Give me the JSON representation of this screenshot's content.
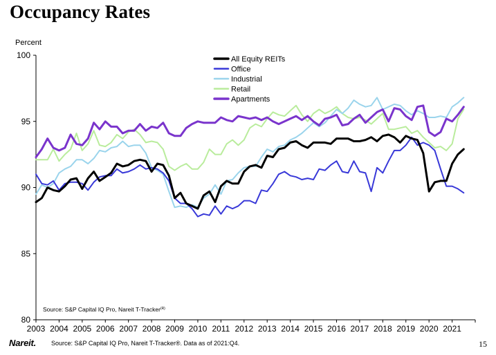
{
  "slide": {
    "title": "Occupancy Rates",
    "page_number": "15",
    "logo_text": "Nareit.",
    "footer_source": "Source: S&P Capital IQ Pro, Nareit T-Tracker®. Data as of 2021:Q4."
  },
  "chart_data": {
    "type": "line",
    "title": "",
    "ylabel": "Percent",
    "xlabel": "",
    "ylim": [
      80,
      100
    ],
    "yticks": [
      80,
      85,
      90,
      95,
      100
    ],
    "xlim": [
      2003,
      2022
    ],
    "xticks": [
      "2003",
      "2004",
      "2005",
      "2006",
      "2007",
      "2008",
      "2009",
      "2010",
      "2011",
      "2012",
      "2013",
      "2014",
      "2015",
      "2016",
      "2017",
      "2018",
      "2019",
      "2020",
      "2021"
    ],
    "grid": false,
    "legend_position": "top-center",
    "note": "Source: S&P Capital IQ Pro, Nareit T-Tracker",
    "note_superscript": "(R)",
    "x_start": 2003.0,
    "x_step": 0.25,
    "series": [
      {
        "name": "All Equity REITs",
        "color": "#000000",
        "width": 3,
        "values": [
          88.9,
          89.2,
          90.0,
          89.8,
          89.7,
          90.1,
          90.6,
          90.7,
          89.9,
          90.7,
          91.2,
          90.5,
          90.8,
          91.1,
          91.8,
          91.6,
          91.7,
          92.0,
          92.1,
          92.0,
          91.2,
          91.8,
          91.7,
          90.9,
          89.2,
          89.6,
          88.8,
          88.6,
          88.4,
          89.4,
          89.7,
          88.9,
          90.1,
          90.5,
          90.3,
          90.3,
          91.2,
          91.6,
          91.7,
          91.5,
          92.4,
          92.3,
          92.9,
          93.0,
          93.4,
          93.5,
          93.2,
          93.0,
          93.4,
          93.4,
          93.4,
          93.3,
          93.7,
          93.7,
          93.7,
          93.5,
          93.5,
          93.6,
          93.8,
          93.5,
          93.9,
          94.0,
          93.8,
          93.4,
          93.9,
          93.7,
          93.6,
          92.6,
          89.7,
          90.4,
          90.5,
          90.5,
          91.8,
          92.5,
          92.9
        ]
      },
      {
        "name": "Office",
        "color": "#3838d8",
        "width": 2,
        "values": [
          91.0,
          90.3,
          90.2,
          90.5,
          89.8,
          90.3,
          90.4,
          90.4,
          90.3,
          89.8,
          90.4,
          90.8,
          90.9,
          90.9,
          91.4,
          91.1,
          91.2,
          91.4,
          91.7,
          91.4,
          91.5,
          91.4,
          91.1,
          90.5,
          89.2,
          88.8,
          88.8,
          88.4,
          87.8,
          88.0,
          87.9,
          88.6,
          88.0,
          88.6,
          88.4,
          88.6,
          89.0,
          89.0,
          88.8,
          89.8,
          89.7,
          90.3,
          91.0,
          91.2,
          90.9,
          90.8,
          90.6,
          90.7,
          90.6,
          91.4,
          91.3,
          91.7,
          92.0,
          91.2,
          91.1,
          92.0,
          91.2,
          91.1,
          89.7,
          91.5,
          91.1,
          92.0,
          92.8,
          92.8,
          93.2,
          93.8,
          93.2,
          93.4,
          93.2,
          92.8,
          91.4,
          90.1,
          90.1,
          89.9,
          89.6
        ]
      },
      {
        "name": "Industrial",
        "color": "#9ad4ec",
        "width": 2,
        "values": [
          89.5,
          90.2,
          90.0,
          90.3,
          91.1,
          91.4,
          91.6,
          92.1,
          92.1,
          91.8,
          92.2,
          92.8,
          92.7,
          93.0,
          93.1,
          93.5,
          93.1,
          93.2,
          93.2,
          92.6,
          91.5,
          91.3,
          91.0,
          89.7,
          88.5,
          88.6,
          88.5,
          88.7,
          88.5,
          89.2,
          89.5,
          90.2,
          89.5,
          90.5,
          90.6,
          91.1,
          91.5,
          91.6,
          91.6,
          92.3,
          92.9,
          92.7,
          93.1,
          93.2,
          93.6,
          93.8,
          94.1,
          94.5,
          94.9,
          94.6,
          94.9,
          95.4,
          95.9,
          95.6,
          96.0,
          96.6,
          96.3,
          96.1,
          96.2,
          96.8,
          95.9,
          96.1,
          96.3,
          96.2,
          95.8,
          95.5,
          95.8,
          95.6,
          95.3,
          95.3,
          95.4,
          95.3,
          96.1,
          96.4,
          96.8
        ]
      },
      {
        "name": "Retail",
        "color": "#b9ec9c",
        "width": 2,
        "values": [
          92.1,
          92.1,
          92.1,
          92.9,
          92.0,
          92.5,
          92.9,
          94.1,
          92.8,
          93.3,
          94.3,
          93.2,
          93.1,
          93.4,
          94.0,
          93.7,
          94.2,
          94.4,
          94.0,
          93.4,
          93.5,
          93.4,
          92.9,
          91.6,
          91.3,
          91.6,
          91.8,
          91.4,
          91.4,
          91.9,
          92.9,
          92.5,
          92.5,
          93.3,
          93.6,
          93.2,
          93.6,
          94.5,
          94.8,
          94.6,
          95.2,
          95.7,
          95.5,
          95.4,
          95.8,
          96.2,
          95.5,
          95.0,
          95.6,
          95.9,
          95.6,
          95.8,
          96.1,
          95.6,
          95.3,
          95.2,
          95.3,
          95.1,
          94.8,
          95.2,
          95.6,
          94.4,
          94.4,
          94.5,
          94.6,
          94.1,
          94.3,
          93.8,
          93.4,
          93.0,
          93.1,
          92.8,
          93.3,
          95.2,
          95.9
        ]
      },
      {
        "name": "Apartments",
        "color": "#7a34cc",
        "width": 3,
        "values": [
          92.3,
          92.9,
          93.7,
          93.0,
          92.8,
          93.0,
          94.0,
          93.3,
          93.2,
          93.7,
          94.9,
          94.4,
          95.0,
          94.6,
          94.6,
          94.1,
          94.3,
          94.3,
          94.8,
          94.3,
          94.6,
          94.5,
          94.9,
          94.1,
          93.9,
          93.9,
          94.5,
          94.8,
          95.0,
          94.9,
          94.9,
          94.9,
          95.3,
          95.1,
          95.0,
          95.4,
          95.3,
          95.2,
          95.3,
          95.1,
          95.3,
          95.0,
          94.8,
          95.0,
          95.2,
          95.4,
          95.1,
          95.4,
          95.0,
          94.7,
          95.2,
          95.3,
          95.5,
          94.7,
          94.8,
          95.2,
          95.5,
          94.9,
          95.3,
          95.7,
          95.9,
          95.0,
          96.0,
          95.9,
          95.4,
          95.1,
          96.1,
          96.2,
          94.2,
          93.9,
          94.2,
          95.2,
          95.0,
          95.5,
          96.1
        ]
      }
    ]
  }
}
